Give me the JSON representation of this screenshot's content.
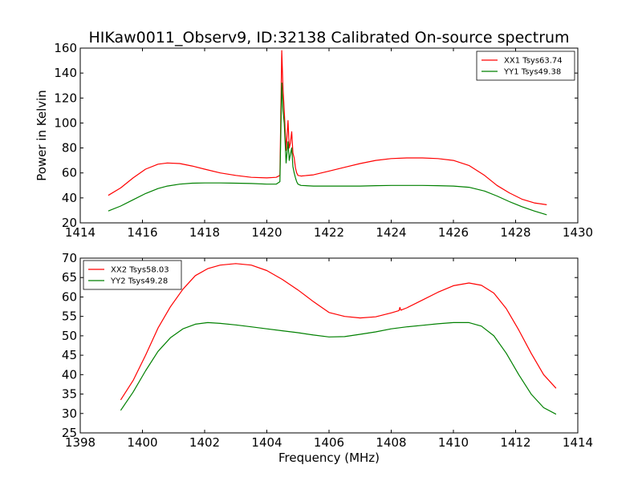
{
  "title": "HIKaw0011_Observ9, ID:32138 Calibrated On-source spectrum",
  "colors": {
    "red": "#ff0000",
    "green": "#008000"
  },
  "chart_data": [
    {
      "type": "line",
      "xlabel": "",
      "ylabel": "Power in Kelvin",
      "xlim": [
        1414,
        1430
      ],
      "ylim": [
        20,
        160
      ],
      "xticks": [
        1414,
        1416,
        1418,
        1420,
        1422,
        1424,
        1426,
        1428,
        1430
      ],
      "yticks": [
        20,
        40,
        60,
        80,
        100,
        120,
        140,
        160
      ],
      "legend_position": "top-right",
      "series": [
        {
          "name": "XX1 Tsys63.74",
          "color": "#ff0000",
          "x": [
            1414.9,
            1415.3,
            1415.7,
            1416.1,
            1416.5,
            1416.8,
            1417.2,
            1417.6,
            1418.0,
            1418.5,
            1419.0,
            1419.5,
            1420.0,
            1420.3,
            1420.42,
            1420.48,
            1420.52,
            1420.56,
            1420.62,
            1420.68,
            1420.72,
            1420.76,
            1420.8,
            1420.84,
            1420.88,
            1420.92,
            1420.96,
            1421.0,
            1421.1,
            1421.5,
            1422.0,
            1422.5,
            1423.0,
            1423.5,
            1424.0,
            1424.5,
            1425.0,
            1425.5,
            1426.0,
            1426.5,
            1427.0,
            1427.4,
            1427.8,
            1428.2,
            1428.6,
            1429.0
          ],
          "y": [
            42,
            48,
            56,
            63,
            67,
            68,
            67.5,
            65.5,
            63,
            60,
            58,
            56.5,
            56,
            56.5,
            58,
            158,
            128,
            110,
            78,
            102,
            80,
            84,
            93,
            76,
            72,
            64,
            60,
            58,
            57.5,
            58.5,
            61.5,
            64.5,
            67.5,
            70,
            71.5,
            72,
            72,
            71.5,
            70,
            66,
            58,
            50,
            44,
            39,
            36,
            34.5
          ]
        },
        {
          "name": "YY1 Tsys49.38",
          "color": "#008000",
          "x": [
            1414.9,
            1415.3,
            1415.7,
            1416.1,
            1416.5,
            1416.8,
            1417.2,
            1417.6,
            1418.0,
            1418.5,
            1419.0,
            1419.5,
            1420.0,
            1420.3,
            1420.42,
            1420.48,
            1420.52,
            1420.56,
            1420.62,
            1420.68,
            1420.72,
            1420.76,
            1420.8,
            1420.84,
            1420.88,
            1420.92,
            1420.96,
            1421.0,
            1421.1,
            1421.5,
            1422.0,
            1422.5,
            1423.0,
            1423.5,
            1424.0,
            1424.5,
            1425.0,
            1425.5,
            1426.0,
            1426.5,
            1427.0,
            1427.4,
            1427.8,
            1428.2,
            1428.6,
            1429.0
          ],
          "y": [
            29.5,
            33.5,
            38.5,
            43.5,
            47.5,
            49.5,
            51,
            51.8,
            52,
            52,
            51.8,
            51.5,
            51,
            51,
            53,
            132,
            110,
            100,
            68,
            85,
            70,
            75,
            80,
            65,
            60,
            56,
            53,
            51,
            50,
            49.5,
            49.5,
            49.5,
            49.5,
            49.8,
            50,
            50,
            50,
            49.8,
            49.5,
            48.5,
            45.5,
            41.5,
            37,
            33,
            29.5,
            26.5
          ]
        }
      ]
    },
    {
      "type": "line",
      "xlabel": "Frequency (MHz)",
      "ylabel": "",
      "xlim": [
        1398,
        1414
      ],
      "ylim": [
        25,
        70
      ],
      "xticks": [
        1398,
        1400,
        1402,
        1404,
        1406,
        1408,
        1410,
        1412,
        1414
      ],
      "yticks": [
        25,
        30,
        35,
        40,
        45,
        50,
        55,
        60,
        65,
        70
      ],
      "legend_position": "top-left",
      "series": [
        {
          "name": "XX2 Tsys58.03",
          "color": "#ff0000",
          "x": [
            1399.3,
            1399.7,
            1400.1,
            1400.5,
            1400.9,
            1401.3,
            1401.7,
            1402.1,
            1402.5,
            1403.0,
            1403.5,
            1404.0,
            1404.5,
            1405.0,
            1405.5,
            1406.0,
            1406.5,
            1407.0,
            1407.5,
            1408.0,
            1408.25,
            1408.28,
            1408.31,
            1408.5,
            1409.0,
            1409.5,
            1410.0,
            1410.5,
            1410.9,
            1411.3,
            1411.7,
            1412.1,
            1412.5,
            1412.9,
            1413.3
          ],
          "y": [
            33.5,
            38.5,
            45,
            52,
            57.5,
            62,
            65.5,
            67.3,
            68.2,
            68.6,
            68.2,
            66.8,
            64.5,
            61.8,
            58.8,
            56,
            55,
            54.6,
            54.9,
            55.9,
            56.5,
            57.3,
            56.6,
            57.2,
            59.2,
            61.2,
            62.9,
            63.6,
            63,
            61,
            57,
            51.5,
            45.5,
            40,
            36.5
          ]
        },
        {
          "name": "YY2 Tsys49.28",
          "color": "#008000",
          "x": [
            1399.3,
            1399.7,
            1400.1,
            1400.5,
            1400.9,
            1401.3,
            1401.7,
            1402.1,
            1402.5,
            1403.0,
            1403.5,
            1404.0,
            1404.5,
            1405.0,
            1405.5,
            1406.0,
            1406.5,
            1407.0,
            1407.5,
            1408.0,
            1408.5,
            1409.0,
            1409.5,
            1410.0,
            1410.5,
            1410.9,
            1411.3,
            1411.7,
            1412.1,
            1412.5,
            1412.9,
            1413.3
          ],
          "y": [
            30.8,
            35.5,
            41,
            46,
            49.5,
            51.8,
            53,
            53.4,
            53.2,
            52.8,
            52.3,
            51.8,
            51.3,
            50.8,
            50.2,
            49.7,
            49.8,
            50.4,
            51,
            51.8,
            52.3,
            52.7,
            53.1,
            53.4,
            53.4,
            52.5,
            50,
            45.5,
            40,
            35,
            31.5,
            29.8
          ]
        }
      ]
    }
  ]
}
